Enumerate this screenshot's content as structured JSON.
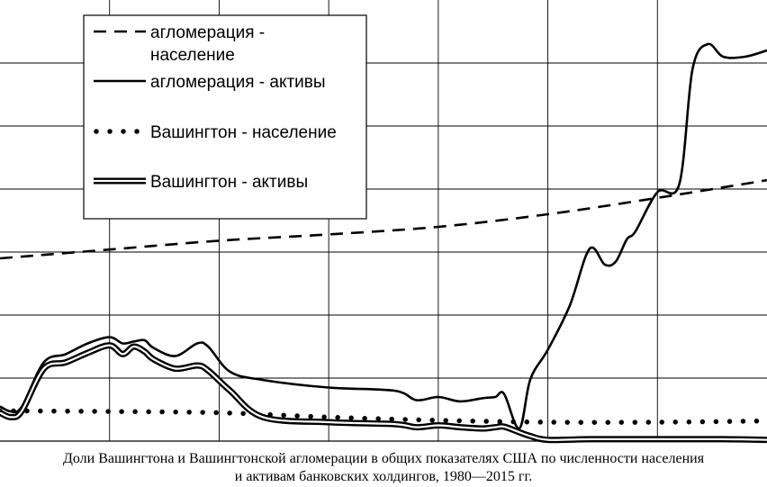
{
  "chart_data": {
    "type": "line",
    "x_range": [
      1980,
      2015
    ],
    "y_range": [
      0,
      7
    ],
    "grid": true,
    "legend_position": "top-left",
    "legend": [
      {
        "label": "агломерация - население",
        "lines": [
          "агломерация -",
          "население"
        ],
        "style": "dashed"
      },
      {
        "label": "агломерация - активы",
        "lines": [
          "агломерация - активы"
        ],
        "style": "solid"
      },
      {
        "label": "Вашингтон - население",
        "lines": [
          "Вашингтон - население"
        ],
        "style": "dotted"
      },
      {
        "label": "Вашингтон - активы",
        "lines": [
          "Вашингтон - активы"
        ],
        "style": "double"
      }
    ],
    "series": [
      {
        "name": "агломерация - население",
        "style": "dashed",
        "x": [
          1980,
          1985,
          1990,
          1995,
          2000,
          2005,
          2010,
          2015
        ],
        "y": [
          2.9,
          3.04,
          3.18,
          3.28,
          3.4,
          3.6,
          3.86,
          4.14
        ]
      },
      {
        "name": "агломерация - активы",
        "style": "solid",
        "x": [
          1980,
          1980.5,
          1981,
          1982,
          1983,
          1984,
          1985,
          1985.6,
          1986.1,
          1986.6,
          1987,
          1988,
          1989,
          1989.5,
          1990.5,
          1992,
          1995,
          1998,
          1999,
          2000,
          2001,
          2002,
          2002.6,
          2003,
          2003.7,
          2004.2,
          2005,
          2006,
          2006.9,
          2007.6,
          2008.1,
          2008.6,
          2009,
          2010,
          2011,
          2011.6,
          2012.3,
          2013,
          2014,
          2015
        ],
        "y": [
          0.55,
          0.47,
          0.55,
          1.25,
          1.38,
          1.55,
          1.65,
          1.55,
          1.58,
          1.6,
          1.48,
          1.35,
          1.55,
          1.5,
          1.1,
          0.97,
          0.85,
          0.8,
          0.65,
          0.7,
          0.63,
          0.68,
          0.7,
          0.75,
          0.2,
          0.98,
          1.45,
          2.15,
          3.05,
          2.8,
          2.85,
          3.2,
          3.33,
          3.95,
          4.08,
          5.9,
          6.3,
          6.1,
          6.1,
          6.2
        ]
      },
      {
        "name": "Вашингтон - население",
        "style": "dotted",
        "x": [
          1980,
          1985,
          1990,
          1995,
          2000,
          2005,
          2010,
          2015
        ],
        "y": [
          0.48,
          0.47,
          0.45,
          0.38,
          0.33,
          0.3,
          0.3,
          0.32
        ]
      },
      {
        "name": "Вашингтон - активы",
        "style": "double",
        "x": [
          1980,
          1980.5,
          1981,
          1982,
          1983,
          1984,
          1985,
          1985.6,
          1986.1,
          1986.6,
          1987,
          1988,
          1989,
          1989.5,
          1990.5,
          1992,
          1995,
          1998,
          1999,
          2000,
          2001,
          2002,
          2002.6,
          2003,
          2003.7,
          2004.2,
          2005,
          2007,
          2010,
          2013,
          2015
        ],
        "y": [
          0.45,
          0.38,
          0.48,
          1.15,
          1.25,
          1.4,
          1.52,
          1.38,
          1.5,
          1.42,
          1.3,
          1.15,
          1.2,
          1.12,
          0.8,
          0.38,
          0.3,
          0.27,
          0.22,
          0.25,
          0.22,
          0.2,
          0.22,
          0.23,
          0.14,
          0.08,
          0.02,
          0.03,
          0.03,
          0.03,
          0.02
        ]
      }
    ]
  },
  "caption": {
    "line1": "Доли Вашингтона и Вашингтонской агломерации в общих показателях США по численности населения",
    "line2": "и активам банковских холдингов, 1980—2015 гг."
  }
}
